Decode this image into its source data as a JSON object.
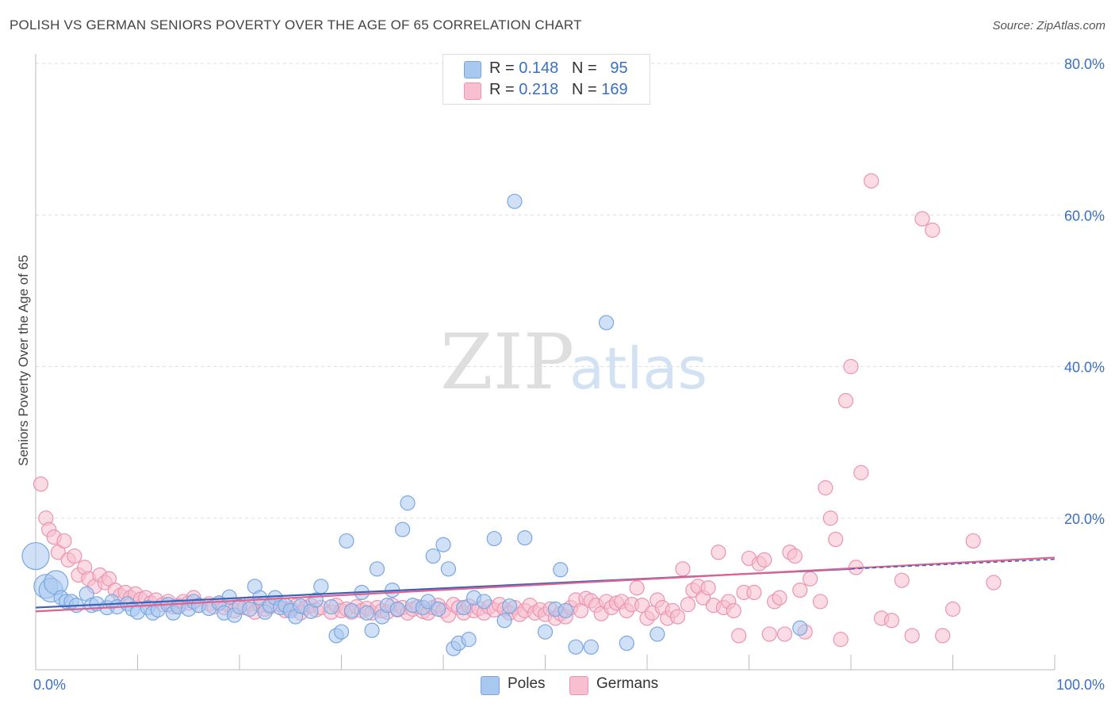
{
  "title": "POLISH VS GERMAN SENIORS POVERTY OVER THE AGE OF 65 CORRELATION CHART",
  "source": "Source: ZipAtlas.com",
  "watermark": {
    "zip": "ZIP",
    "atlas": "atlas"
  },
  "legend_top": [
    {
      "r_label": "R = ",
      "r_value": "0.148",
      "n_label": "N = ",
      "n_value": "95",
      "color": "#a9c8f0",
      "border": "#7aa6e0"
    },
    {
      "r_label": "R = ",
      "r_value": "0.218",
      "n_label": "N = ",
      "n_value": "169",
      "color": "#f7bfd0",
      "border": "#ec93b0"
    }
  ],
  "legend_bottom": [
    {
      "label": "Poles",
      "color": "#a9c8f0",
      "border": "#7aa6e0"
    },
    {
      "label": "Germans",
      "color": "#f7bfd0",
      "border": "#ec93b0"
    }
  ],
  "chart_data": {
    "type": "scatter",
    "title": "POLISH VS GERMAN SENIORS POVERTY OVER THE AGE OF 65 CORRELATION CHART",
    "xlabel": "",
    "ylabel": "Seniors Poverty Over the Age of 65",
    "xlim": [
      0,
      100
    ],
    "ylim": [
      0,
      80
    ],
    "x_tick_labels": [
      "0.0%",
      "100.0%"
    ],
    "y_ticks": [
      20,
      40,
      60,
      80
    ],
    "y_tick_labels": [
      "20.0%",
      "40.0%",
      "60.0%",
      "80.0%"
    ],
    "grid": true,
    "legend_placement": "top-center",
    "series": [
      {
        "name": "Poles",
        "color": "#7aa6e0",
        "fill": "#a9c8f0",
        "line_color": "#3a62b8",
        "trend": [
          [
            0,
            8.2
          ],
          [
            80,
            13.3
          ]
        ],
        "points": [
          [
            0,
            15
          ],
          [
            1,
            11
          ],
          [
            1.5,
            10.5
          ],
          [
            2,
            11.5
          ],
          [
            2.5,
            9.5
          ],
          [
            3,
            9
          ],
          [
            3.5,
            9
          ],
          [
            4,
            8.5
          ],
          [
            5,
            10
          ],
          [
            5.5,
            8.5
          ],
          [
            6,
            8.7
          ],
          [
            7,
            8.2
          ],
          [
            7.5,
            9
          ],
          [
            8,
            8.3
          ],
          [
            9,
            8.7
          ],
          [
            9.5,
            8
          ],
          [
            10,
            7.6
          ],
          [
            11,
            8.2
          ],
          [
            11.5,
            7.5
          ],
          [
            12,
            7.9
          ],
          [
            13,
            8.6
          ],
          [
            13.5,
            7.5
          ],
          [
            14,
            8.3
          ],
          [
            15,
            8
          ],
          [
            15.5,
            9
          ],
          [
            16,
            8.5
          ],
          [
            17,
            8.1
          ],
          [
            18,
            8.8
          ],
          [
            18.5,
            7.5
          ],
          [
            19,
            9.6
          ],
          [
            19.5,
            7.2
          ],
          [
            20,
            8.3
          ],
          [
            21,
            8
          ],
          [
            21.5,
            11
          ],
          [
            22,
            9.5
          ],
          [
            22.5,
            7.6
          ],
          [
            23,
            8.5
          ],
          [
            23.5,
            9.5
          ],
          [
            24,
            8.2
          ],
          [
            24.5,
            8.5
          ],
          [
            25,
            7.8
          ],
          [
            25.5,
            7
          ],
          [
            26,
            8.4
          ],
          [
            27,
            7.7
          ],
          [
            27.5,
            9.2
          ],
          [
            28,
            11
          ],
          [
            29,
            8.3
          ],
          [
            29.5,
            4.5
          ],
          [
            30,
            5
          ],
          [
            30.5,
            17
          ],
          [
            31,
            7.8
          ],
          [
            32,
            10.2
          ],
          [
            32.5,
            7.5
          ],
          [
            33,
            5.2
          ],
          [
            33.5,
            13.3
          ],
          [
            34,
            7
          ],
          [
            34.5,
            8.5
          ],
          [
            35,
            10.5
          ],
          [
            35.5,
            8
          ],
          [
            36,
            18.5
          ],
          [
            36.5,
            22
          ],
          [
            37,
            8.5
          ],
          [
            38,
            8.2
          ],
          [
            38.5,
            9
          ],
          [
            39,
            15
          ],
          [
            39.5,
            8
          ],
          [
            40,
            16.5
          ],
          [
            40.5,
            13.3
          ],
          [
            41,
            2.8
          ],
          [
            41.5,
            3.5
          ],
          [
            42,
            8.2
          ],
          [
            42.5,
            4
          ],
          [
            43,
            9.5
          ],
          [
            44,
            9
          ],
          [
            45,
            17.3
          ],
          [
            46,
            6.5
          ],
          [
            46.5,
            8.4
          ],
          [
            47,
            61.8
          ],
          [
            48,
            17.4
          ],
          [
            50,
            5
          ],
          [
            51,
            8
          ],
          [
            51.5,
            13.2
          ],
          [
            52,
            7.8
          ],
          [
            53,
            3
          ],
          [
            54.5,
            3
          ],
          [
            56,
            45.8
          ],
          [
            58,
            3.5
          ],
          [
            61,
            4.7
          ],
          [
            75,
            5.5
          ]
        ]
      },
      {
        "name": "Germans",
        "color": "#ec93b0",
        "fill": "#f7bfd0",
        "line_color": "#e0628e",
        "trend": [
          [
            0,
            7.7
          ],
          [
            100,
            14.8
          ]
        ],
        "points": [
          [
            0.5,
            24.5
          ],
          [
            1,
            20
          ],
          [
            1.3,
            18.5
          ],
          [
            1.8,
            17.5
          ],
          [
            2.2,
            15.5
          ],
          [
            2.8,
            17
          ],
          [
            3.2,
            14.5
          ],
          [
            3.8,
            15
          ],
          [
            4.2,
            12.5
          ],
          [
            4.8,
            13.5
          ],
          [
            5.2,
            12
          ],
          [
            5.8,
            11
          ],
          [
            6.3,
            12.5
          ],
          [
            6.8,
            11.5
          ],
          [
            7.2,
            12
          ],
          [
            7.8,
            10.5
          ],
          [
            8.3,
            9.8
          ],
          [
            8.8,
            10.2
          ],
          [
            9.3,
            9.5
          ],
          [
            9.8,
            10
          ],
          [
            10.3,
            9.3
          ],
          [
            10.8,
            9.5
          ],
          [
            11.3,
            8.8
          ],
          [
            11.8,
            9.2
          ],
          [
            12.5,
            8.6
          ],
          [
            13,
            9
          ],
          [
            13.5,
            8.3
          ],
          [
            14,
            8.5
          ],
          [
            14.5,
            9
          ],
          [
            15,
            8.8
          ],
          [
            15.5,
            9.5
          ],
          [
            16,
            8.5
          ],
          [
            17,
            8.7
          ],
          [
            17.5,
            8.3
          ],
          [
            18,
            8.8
          ],
          [
            18.5,
            8.2
          ],
          [
            19,
            8.5
          ],
          [
            19.5,
            7.8
          ],
          [
            20,
            8.4
          ],
          [
            20.5,
            8.2
          ],
          [
            21,
            8.7
          ],
          [
            21.5,
            7.6
          ],
          [
            22,
            8.5
          ],
          [
            22.5,
            8
          ],
          [
            23,
            8.3
          ],
          [
            24,
            8.6
          ],
          [
            24.5,
            7.8
          ],
          [
            25,
            8.1
          ],
          [
            25.5,
            8.4
          ],
          [
            26,
            7.5
          ],
          [
            26.5,
            8.2
          ],
          [
            27,
            8.5
          ],
          [
            27.5,
            7.9
          ],
          [
            28,
            8.2
          ],
          [
            29,
            7.6
          ],
          [
            29.5,
            8.5
          ],
          [
            30,
            7.8
          ],
          [
            30.5,
            8
          ],
          [
            31,
            7.6
          ],
          [
            31.5,
            8.3
          ],
          [
            32,
            7.8
          ],
          [
            32.5,
            8.1
          ],
          [
            33,
            7.5
          ],
          [
            33.5,
            8.2
          ],
          [
            34,
            7.8
          ],
          [
            34.5,
            7.6
          ],
          [
            35,
            8.5
          ],
          [
            35.5,
            7.9
          ],
          [
            36,
            8.2
          ],
          [
            36.5,
            7.5
          ],
          [
            37,
            8
          ],
          [
            37.5,
            8.3
          ],
          [
            38,
            7.7
          ],
          [
            38.5,
            7.5
          ],
          [
            39,
            8.2
          ],
          [
            39.5,
            8.5
          ],
          [
            40,
            7.8
          ],
          [
            40.5,
            7.2
          ],
          [
            41,
            8.6
          ],
          [
            41.5,
            8.2
          ],
          [
            42,
            7.5
          ],
          [
            42.5,
            8.4
          ],
          [
            43,
            7.8
          ],
          [
            43.5,
            8.1
          ],
          [
            44,
            7.5
          ],
          [
            44.5,
            8.3
          ],
          [
            45,
            7.9
          ],
          [
            45.5,
            8.6
          ],
          [
            46,
            8
          ],
          [
            46.5,
            7.5
          ],
          [
            47,
            8.2
          ],
          [
            47.5,
            7.3
          ],
          [
            48,
            7.8
          ],
          [
            48.5,
            8.5
          ],
          [
            49,
            7.5
          ],
          [
            49.5,
            7.9
          ],
          [
            50,
            7.3
          ],
          [
            50.5,
            8
          ],
          [
            51,
            6.8
          ],
          [
            51.5,
            7.4
          ],
          [
            52,
            7
          ],
          [
            52.5,
            8.2
          ],
          [
            53,
            9.2
          ],
          [
            53.5,
            7.8
          ],
          [
            54,
            9.4
          ],
          [
            54.5,
            9.1
          ],
          [
            55,
            8.5
          ],
          [
            55.5,
            7.4
          ],
          [
            56,
            9
          ],
          [
            56.5,
            8.2
          ],
          [
            57,
            8.8
          ],
          [
            57.5,
            9
          ],
          [
            58,
            7.8
          ],
          [
            58.5,
            8.6
          ],
          [
            59,
            10.8
          ],
          [
            59.5,
            8.5
          ],
          [
            60,
            6.8
          ],
          [
            60.5,
            7.5
          ],
          [
            61,
            9.2
          ],
          [
            61.5,
            8.2
          ],
          [
            62,
            6.8
          ],
          [
            62.5,
            7.8
          ],
          [
            63,
            7
          ],
          [
            63.5,
            13.3
          ],
          [
            64,
            8.6
          ],
          [
            64.5,
            10.5
          ],
          [
            65,
            11
          ],
          [
            65.5,
            9.5
          ],
          [
            66,
            10.8
          ],
          [
            66.5,
            8.5
          ],
          [
            67,
            15.5
          ],
          [
            67.5,
            8.2
          ],
          [
            68,
            9
          ],
          [
            68.5,
            7.8
          ],
          [
            69,
            4.5
          ],
          [
            69.5,
            10.2
          ],
          [
            70,
            14.7
          ],
          [
            70.5,
            10.2
          ],
          [
            71,
            14
          ],
          [
            71.5,
            14.5
          ],
          [
            72,
            4.7
          ],
          [
            72.5,
            9
          ],
          [
            73,
            9.5
          ],
          [
            73.5,
            4.7
          ],
          [
            74,
            15.5
          ],
          [
            74.5,
            15
          ],
          [
            75,
            10.5
          ],
          [
            75.5,
            5
          ],
          [
            76,
            12
          ],
          [
            77,
            9
          ],
          [
            77.5,
            24
          ],
          [
            78,
            20
          ],
          [
            78.5,
            17.2
          ],
          [
            79,
            4
          ],
          [
            79.5,
            35.5
          ],
          [
            80,
            40
          ],
          [
            80.5,
            13.5
          ],
          [
            81,
            26
          ],
          [
            82,
            64.5
          ],
          [
            83,
            6.8
          ],
          [
            84,
            6.5
          ],
          [
            85,
            11.8
          ],
          [
            86,
            4.5
          ],
          [
            87,
            59.5
          ],
          [
            88,
            58
          ],
          [
            89,
            4.5
          ],
          [
            90,
            8
          ],
          [
            92,
            17
          ],
          [
            94,
            11.5
          ]
        ]
      }
    ]
  }
}
